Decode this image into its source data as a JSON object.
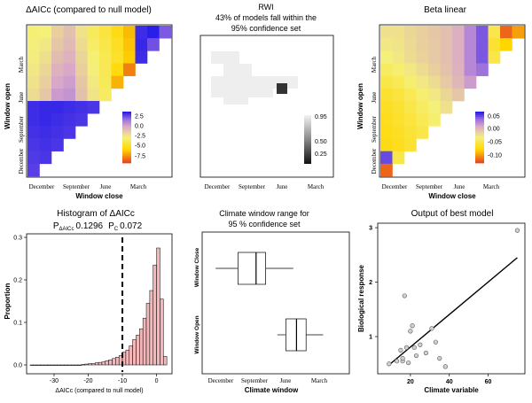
{
  "chart_data": [
    {
      "type": "heatmap",
      "title": "ΔAICc (compared to null model)",
      "xlabel": "Window close",
      "ylabel": "Window open",
      "x_ticks": [
        "December",
        "September",
        "June",
        "March"
      ],
      "y_ticks": [
        "March",
        "June",
        "September",
        "December"
      ],
      "colorbar": {
        "ticks": [
          "2.5",
          "0.0",
          "-2.5",
          "-5.0",
          "-7.5"
        ],
        "min": -9,
        "max": 3.5
      },
      "n": 12,
      "cells": [
        [
          -2.9,
          -2.8,
          -1.5,
          -0.9,
          -2.2,
          -3.5,
          -4.2,
          -5.3,
          -6.5,
          3.2,
          3.5,
          2.2
        ],
        [
          -2.7,
          -2.4,
          -1.2,
          -0.7,
          -2.0,
          -3.2,
          -4.0,
          -5.0,
          -6.3,
          3.3,
          2.4
        ],
        [
          -2.6,
          -2.1,
          -0.8,
          -0.4,
          -1.7,
          -2.9,
          -3.8,
          -4.8,
          -6.1,
          3.2
        ],
        [
          -2.4,
          -1.8,
          -0.4,
          0.0,
          -1.5,
          -2.7,
          -3.7,
          -5.5,
          -7.8
        ],
        [
          -2.2,
          -1.5,
          0.0,
          0.3,
          -1.2,
          -2.5,
          -3.6,
          -6.7
        ],
        [
          -2.0,
          -1.2,
          0.4,
          0.6,
          -1.0,
          -2.3,
          -3.4
        ],
        [
          3.2,
          3.3,
          3.3,
          3.2,
          3.1,
          3.0
        ],
        [
          3.2,
          3.3,
          3.2,
          3.1,
          3.0
        ],
        [
          3.1,
          3.2,
          3.1,
          3.0
        ],
        [
          3.0,
          3.1,
          3.0
        ],
        [
          2.9,
          3.0
        ],
        [
          2.8
        ]
      ]
    },
    {
      "type": "heatmap",
      "title": "RWI",
      "subtitle_lines": [
        "43% of models fall within the",
        "95% confidence set"
      ],
      "x_ticks": [
        "December",
        "September",
        "June",
        "March"
      ],
      "colorbar": {
        "ticks": [
          "0.95",
          "0.50",
          "0.25"
        ]
      },
      "n": 12
    },
    {
      "type": "heatmap",
      "title": "Beta linear",
      "xlabel": "Window close",
      "ylabel": "Window open",
      "x_ticks": [
        "December",
        "September",
        "June",
        "March"
      ],
      "y_ticks": [
        "March",
        "June",
        "September",
        "December"
      ],
      "colorbar": {
        "ticks": [
          "0.05",
          "0.00",
          "-0.05",
          "-0.10"
        ],
        "min": -0.12,
        "max": 0.08
      },
      "n": 12,
      "cells": [
        [
          -0.01,
          -0.01,
          -0.005,
          0.0,
          0.005,
          0.01,
          0.02,
          0.04,
          0.06,
          -0.04,
          -0.11,
          -0.09
        ],
        [
          -0.015,
          -0.012,
          -0.006,
          0.0,
          0.004,
          0.01,
          0.02,
          0.04,
          0.06,
          -0.05,
          -0.07
        ],
        [
          -0.02,
          -0.015,
          -0.008,
          -0.002,
          0.004,
          0.01,
          0.02,
          0.04,
          0.06,
          -0.04
        ],
        [
          -0.03,
          -0.025,
          -0.015,
          -0.008,
          0.0,
          0.008,
          0.018,
          0.04,
          0.05
        ],
        [
          -0.04,
          -0.035,
          -0.025,
          -0.015,
          -0.008,
          0.004,
          0.015,
          0.03
        ],
        [
          -0.05,
          -0.045,
          -0.035,
          -0.025,
          -0.015,
          -0.005,
          0.005
        ],
        [
          -0.055,
          -0.05,
          -0.04,
          -0.03,
          -0.02,
          -0.01
        ],
        [
          -0.058,
          -0.052,
          -0.045,
          -0.035,
          -0.025
        ],
        [
          -0.06,
          -0.055,
          -0.048,
          -0.04
        ],
        [
          -0.062,
          -0.058,
          -0.05
        ],
        [
          0.065,
          -0.04
        ],
        [
          -0.11
        ]
      ]
    },
    {
      "type": "bar",
      "title": "Histogram of ΔAICc",
      "stats": [
        {
          "label": "P",
          "sub": "ΔAICc",
          "value": "0.1296"
        },
        {
          "label": "P",
          "sub": "C",
          "value": "0.072"
        }
      ],
      "xlabel": "ΔAICc (compared to null model)",
      "ylabel": "Proportion",
      "xlim": [
        -37,
        4
      ],
      "ylim": [
        0,
        0.3
      ],
      "x_ticks": [
        -30,
        -20,
        -10,
        0
      ],
      "y_ticks": [
        "0.0",
        "0.1",
        "0.2",
        "0.3"
      ],
      "vline": -10,
      "bin_width": 1,
      "bins": [
        {
          "x": -37,
          "v": 0.0
        },
        {
          "x": -36,
          "v": 0.0
        },
        {
          "x": -35,
          "v": 0.0
        },
        {
          "x": -34,
          "v": 0.0
        },
        {
          "x": -33,
          "v": 0.0
        },
        {
          "x": -32,
          "v": 0.0
        },
        {
          "x": -31,
          "v": 0.0
        },
        {
          "x": -30,
          "v": 0.0
        },
        {
          "x": -29,
          "v": 0.0
        },
        {
          "x": -28,
          "v": 0.0
        },
        {
          "x": -27,
          "v": 0.0
        },
        {
          "x": -26,
          "v": 0.0
        },
        {
          "x": -25,
          "v": 0.0
        },
        {
          "x": -24,
          "v": 0.0
        },
        {
          "x": -23,
          "v": 0.0
        },
        {
          "x": -22,
          "v": 0.001
        },
        {
          "x": -21,
          "v": 0.002
        },
        {
          "x": -20,
          "v": 0.003
        },
        {
          "x": -19,
          "v": 0.003
        },
        {
          "x": -18,
          "v": 0.005
        },
        {
          "x": -17,
          "v": 0.006
        },
        {
          "x": -16,
          "v": 0.007
        },
        {
          "x": -15,
          "v": 0.01
        },
        {
          "x": -14,
          "v": 0.012
        },
        {
          "x": -13,
          "v": 0.015
        },
        {
          "x": -12,
          "v": 0.018
        },
        {
          "x": -11,
          "v": 0.022
        },
        {
          "x": -10,
          "v": 0.03
        },
        {
          "x": -9,
          "v": 0.035
        },
        {
          "x": -8,
          "v": 0.045
        },
        {
          "x": -7,
          "v": 0.06
        },
        {
          "x": -6,
          "v": 0.07
        },
        {
          "x": -5,
          "v": 0.085
        },
        {
          "x": -4,
          "v": 0.11
        },
        {
          "x": -3,
          "v": 0.145
        },
        {
          "x": -2,
          "v": 0.175
        },
        {
          "x": -1,
          "v": 0.235
        },
        {
          "x": 0,
          "v": 0.275
        },
        {
          "x": 1,
          "v": 0.155
        },
        {
          "x": 2,
          "v": 0.02
        }
      ]
    },
    {
      "type": "box",
      "title_lines": [
        "Climate window range for",
        "95 % confidence set"
      ],
      "xlabel": "Climate window",
      "x_ticks": [
        "December",
        "September",
        "June",
        "March"
      ],
      "categories": [
        "Window Close",
        "Window Open"
      ],
      "boxes": [
        {
          "name": "Window Close",
          "whisker_low": 0.55,
          "q1": 1.6,
          "median": 2.45,
          "q3": 2.9,
          "whisker_high": 4.2
        },
        {
          "name": "Window Open",
          "whisker_low": 3.45,
          "q1": 3.85,
          "median": 4.35,
          "q3": 4.8,
          "whisker_high": 5.6
        }
      ]
    },
    {
      "type": "scatter",
      "title": "Output of best model",
      "xlabel": "Climate variable",
      "ylabel": "Biological response",
      "xlim": [
        5,
        78
      ],
      "ylim": [
        0.35,
        3.05
      ],
      "x_ticks": [
        20,
        40,
        60
      ],
      "y_ticks": [
        1,
        2,
        3
      ],
      "points": [
        [
          9,
          0.5
        ],
        [
          13,
          0.55
        ],
        [
          15,
          0.75
        ],
        [
          16,
          0.55
        ],
        [
          16,
          0.6
        ],
        [
          17,
          1.75
        ],
        [
          18,
          0.8
        ],
        [
          19,
          0.52
        ],
        [
          20,
          1.1
        ],
        [
          21,
          1.2
        ],
        [
          22,
          0.8
        ],
        [
          23,
          0.65
        ],
        [
          25,
          0.85
        ],
        [
          28,
          0.7
        ],
        [
          31,
          1.15
        ],
        [
          33,
          0.9
        ],
        [
          35,
          0.6
        ],
        [
          38,
          0.45
        ],
        [
          75,
          2.95
        ]
      ],
      "fit_line": {
        "x": [
          9,
          75
        ],
        "y": [
          0.48,
          2.45
        ]
      }
    }
  ]
}
